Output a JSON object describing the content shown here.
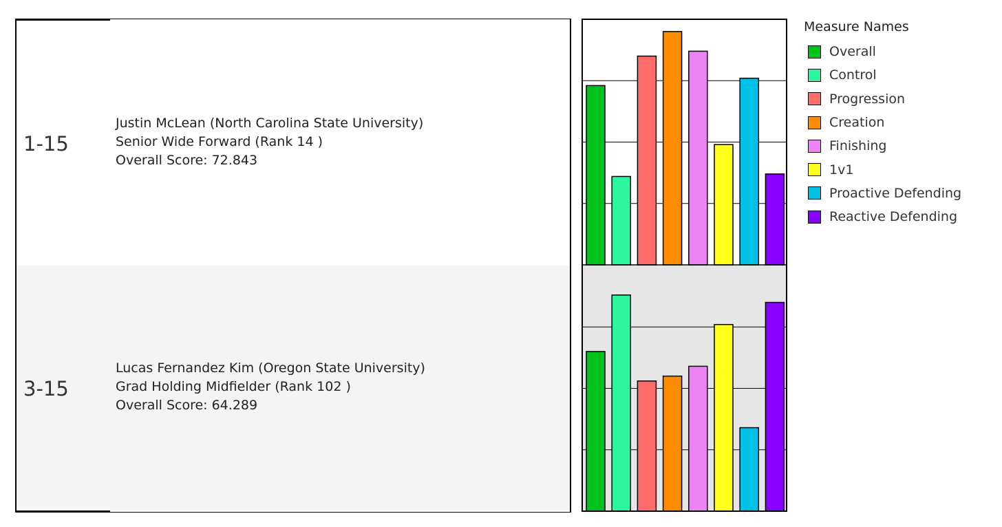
{
  "rows": [
    {
      "id": "1-15",
      "line1": "Justin McLean (North Carolina State University)",
      "line2": "Senior Wide Forward  (Rank 14 )",
      "line3": "Overall Score: 72.843"
    },
    {
      "id": "3-15",
      "line1": "Lucas Fernandez Kim (Oregon State University)",
      "line2": "Grad Holding Midfielder  (Rank 102 )",
      "line3": "Overall Score: 64.289"
    }
  ],
  "legend": {
    "title": "Measure Names",
    "items": [
      {
        "label": "Overall",
        "color": "#00c21c"
      },
      {
        "label": "Control",
        "color": "#2cf79e"
      },
      {
        "label": "Progression",
        "color": "#ff6b6b"
      },
      {
        "label": "Creation",
        "color": "#ff8c00"
      },
      {
        "label": "Finishing",
        "color": "#ec83f5"
      },
      {
        "label": "1v1",
        "color": "#ffff19"
      },
      {
        "label": "Proactive Defending",
        "color": "#00c0e8"
      },
      {
        "label": "Reactive Defending",
        "color": "#8800ff"
      }
    ]
  },
  "chart_data": {
    "type": "bar",
    "categories": [
      "Overall",
      "Control",
      "Progression",
      "Creation",
      "Finishing",
      "1v1",
      "Proactive Defending",
      "Reactive Defending"
    ],
    "ylim": [
      0,
      100
    ],
    "grid": true,
    "series": [
      {
        "name": "Justin McLean",
        "values": [
          73,
          36,
          85,
          95,
          87,
          49,
          76,
          37
        ]
      },
      {
        "name": "Lucas Fernandez Kim",
        "values": [
          65,
          88,
          53,
          55,
          59,
          76,
          34,
          85
        ]
      }
    ]
  }
}
